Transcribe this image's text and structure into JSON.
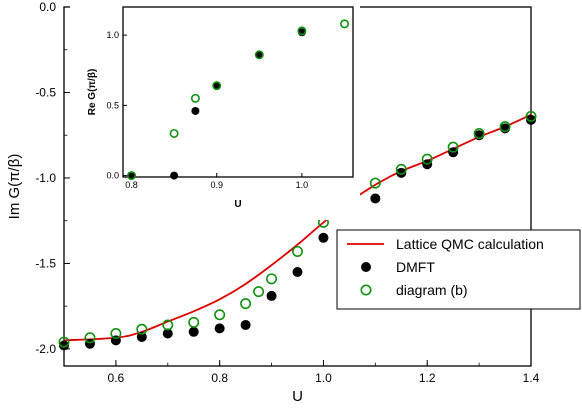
{
  "chart_data": [
    {
      "type": "scatter",
      "xlabel": "U",
      "ylabel": "Im G(π/β)",
      "xlim": [
        0.5,
        1.4
      ],
      "ylim": [
        -2.1,
        0.0
      ],
      "xticks": [
        "0.6",
        "0.8",
        "1.0",
        "1.2",
        "1.4"
      ],
      "yticks": [
        "0.0",
        "-0.5",
        "-1.0",
        "-1.5",
        "-2.0"
      ],
      "legend_position": "lower-right",
      "colors": {
        "line": "#e00000",
        "dmft": "#000000",
        "diagram": "#109010"
      },
      "series": [
        {
          "name": "Lattice QMC calculation",
          "style": "line",
          "x": [
            0.5,
            0.6,
            0.65,
            0.7,
            0.75,
            0.8,
            0.85,
            0.9,
            0.95,
            1.0,
            1.05,
            1.1,
            1.15,
            1.2,
            1.25,
            1.3,
            1.35,
            1.4
          ],
          "y": [
            -1.95,
            -1.935,
            -1.9,
            -1.84,
            -1.78,
            -1.71,
            -1.62,
            -1.51,
            -1.39,
            -1.26,
            -1.14,
            -1.04,
            -0.96,
            -0.9,
            -0.83,
            -0.76,
            -0.7,
            -0.63
          ]
        },
        {
          "name": "DMFT",
          "style": "filled",
          "x": [
            0.5,
            0.55,
            0.6,
            0.65,
            0.7,
            0.75,
            0.8,
            0.85,
            0.9,
            0.95,
            1.0,
            1.05,
            1.1,
            1.15,
            1.2,
            1.25,
            1.3,
            1.35,
            1.4
          ],
          "y": [
            -1.98,
            -1.97,
            -1.95,
            -1.93,
            -1.91,
            -1.9,
            -1.88,
            -1.86,
            -1.69,
            -1.55,
            -1.35,
            -1.21,
            -1.12,
            -0.97,
            -0.92,
            -0.85,
            -0.75,
            -0.71,
            -0.66
          ]
        },
        {
          "name": "diagram (b)",
          "style": "open",
          "x": [
            0.5,
            0.55,
            0.6,
            0.65,
            0.7,
            0.75,
            0.8,
            0.85,
            0.875,
            0.9,
            0.95,
            1.0,
            1.05,
            1.1,
            1.15,
            1.2,
            1.25,
            1.3,
            1.35,
            1.4
          ],
          "y": [
            -1.96,
            -1.935,
            -1.91,
            -1.885,
            -1.86,
            -1.845,
            -1.8,
            -1.735,
            -1.665,
            -1.59,
            -1.43,
            -1.26,
            -1.15,
            -1.03,
            -0.95,
            -0.89,
            -0.82,
            -0.74,
            -0.7,
            -0.64
          ]
        }
      ]
    },
    {
      "type": "scatter",
      "inset": true,
      "xlabel": "U",
      "ylabel": "Re G(π/β)",
      "xlim": [
        0.79,
        1.06
      ],
      "ylim": [
        -0.01,
        1.2
      ],
      "xticks": [
        "0.8",
        "0.9",
        "1.0"
      ],
      "yticks": [
        "0.0",
        "0.5",
        "1.0"
      ],
      "series": [
        {
          "name": "DMFT",
          "style": "filled",
          "x": [
            0.8,
            0.85,
            0.875,
            0.9,
            0.95,
            1.0
          ],
          "y": [
            0.0,
            0.0,
            0.46,
            0.64,
            0.86,
            1.02
          ]
        },
        {
          "name": "diagram (b)",
          "style": "open",
          "x": [
            0.8,
            0.85,
            0.875,
            0.9,
            0.95,
            1.0,
            1.05
          ],
          "y": [
            0.0,
            0.3,
            0.55,
            0.64,
            0.86,
            1.03,
            1.08
          ]
        }
      ]
    }
  ]
}
